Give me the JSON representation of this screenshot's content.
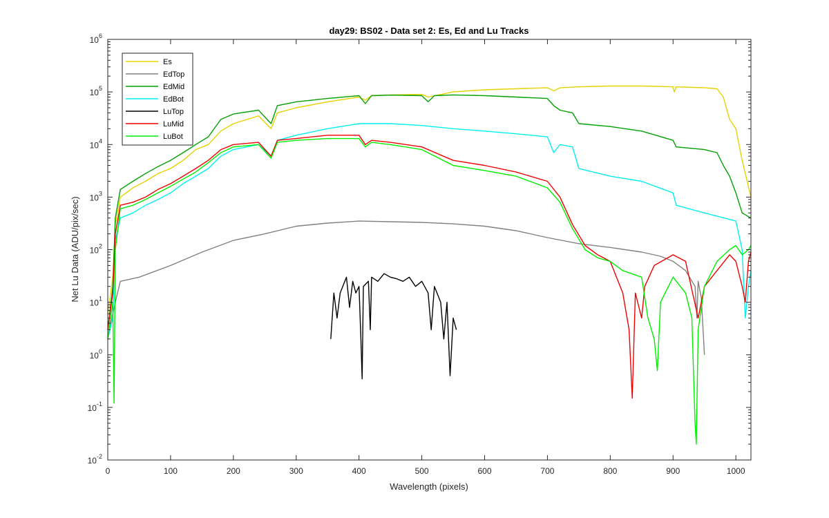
{
  "chart_data": {
    "type": "line",
    "title": "day29: BS02 - Data set 2: Es, Ed and Lu Tracks",
    "xlabel": "Wavelength (pixels)",
    "ylabel": "Net Lu Data (ADU/pix/sec)",
    "xlim": [
      0,
      1024
    ],
    "ylim": [
      0.01,
      1000000
    ],
    "yscale": "log",
    "x_ticks": [
      0,
      100,
      200,
      300,
      400,
      500,
      600,
      700,
      800,
      900,
      1000
    ],
    "y_ticks": [
      {
        "base": "10",
        "exp": "-2",
        "value": 0.01
      },
      {
        "base": "10",
        "exp": "-1",
        "value": 0.1
      },
      {
        "base": "10",
        "exp": "0",
        "value": 1
      },
      {
        "base": "10",
        "exp": "1",
        "value": 10
      },
      {
        "base": "10",
        "exp": "2",
        "value": 100
      },
      {
        "base": "10",
        "exp": "3",
        "value": 1000
      },
      {
        "base": "10",
        "exp": "4",
        "value": 10000
      },
      {
        "base": "10",
        "exp": "5",
        "value": 100000
      },
      {
        "base": "10",
        "exp": "6",
        "value": 1000000
      }
    ],
    "grid": false,
    "legend_position": "top-left",
    "series": [
      {
        "name": "Es",
        "color": "#e6d200",
        "points": [
          [
            0,
            6
          ],
          [
            8,
            30
          ],
          [
            12,
            300
          ],
          [
            20,
            1000
          ],
          [
            40,
            1500
          ],
          [
            60,
            2000
          ],
          [
            80,
            2800
          ],
          [
            100,
            3500
          ],
          [
            120,
            5000
          ],
          [
            140,
            8000
          ],
          [
            160,
            10000
          ],
          [
            180,
            18000
          ],
          [
            200,
            25000
          ],
          [
            240,
            35000
          ],
          [
            260,
            20000
          ],
          [
            270,
            40000
          ],
          [
            300,
            50000
          ],
          [
            350,
            65000
          ],
          [
            400,
            80000
          ],
          [
            410,
            70000
          ],
          [
            420,
            85000
          ],
          [
            450,
            88000
          ],
          [
            500,
            90000
          ],
          [
            510,
            80000
          ],
          [
            550,
            100000
          ],
          [
            600,
            110000
          ],
          [
            650,
            115000
          ],
          [
            700,
            120000
          ],
          [
            710,
            105000
          ],
          [
            720,
            120000
          ],
          [
            750,
            125000
          ],
          [
            800,
            130000
          ],
          [
            850,
            130000
          ],
          [
            900,
            125000
          ],
          [
            902,
            100000
          ],
          [
            905,
            125000
          ],
          [
            950,
            120000
          ],
          [
            970,
            115000
          ],
          [
            980,
            80000
          ],
          [
            990,
            30000
          ],
          [
            1000,
            20000
          ],
          [
            1010,
            5000
          ],
          [
            1024,
            1000
          ]
        ]
      },
      {
        "name": "EdTop",
        "color": "#808080",
        "points": [
          [
            0,
            2
          ],
          [
            8,
            6
          ],
          [
            12,
            10
          ],
          [
            20,
            25
          ],
          [
            50,
            30
          ],
          [
            100,
            50
          ],
          [
            150,
            90
          ],
          [
            200,
            150
          ],
          [
            250,
            200
          ],
          [
            300,
            280
          ],
          [
            350,
            320
          ],
          [
            400,
            350
          ],
          [
            450,
            340
          ],
          [
            500,
            330
          ],
          [
            550,
            310
          ],
          [
            600,
            280
          ],
          [
            650,
            230
          ],
          [
            700,
            170
          ],
          [
            750,
            130
          ],
          [
            800,
            110
          ],
          [
            850,
            90
          ],
          [
            880,
            75
          ],
          [
            900,
            60
          ],
          [
            920,
            40
          ],
          [
            935,
            20
          ],
          [
            938,
            5
          ],
          [
            940,
            25
          ],
          [
            945,
            12
          ],
          [
            950,
            1
          ]
        ]
      },
      {
        "name": "EdMid",
        "color": "#00a000",
        "points": [
          [
            0,
            3
          ],
          [
            8,
            20
          ],
          [
            12,
            400
          ],
          [
            20,
            1400
          ],
          [
            40,
            2000
          ],
          [
            60,
            2800
          ],
          [
            80,
            3800
          ],
          [
            100,
            5000
          ],
          [
            120,
            7000
          ],
          [
            140,
            10000
          ],
          [
            160,
            14000
          ],
          [
            180,
            30000
          ],
          [
            200,
            38000
          ],
          [
            240,
            45000
          ],
          [
            260,
            25000
          ],
          [
            270,
            55000
          ],
          [
            300,
            65000
          ],
          [
            350,
            75000
          ],
          [
            400,
            85000
          ],
          [
            410,
            60000
          ],
          [
            420,
            85000
          ],
          [
            450,
            87000
          ],
          [
            500,
            85000
          ],
          [
            510,
            65000
          ],
          [
            520,
            85000
          ],
          [
            550,
            88000
          ],
          [
            600,
            85000
          ],
          [
            650,
            80000
          ],
          [
            700,
            75000
          ],
          [
            710,
            55000
          ],
          [
            720,
            45000
          ],
          [
            740,
            40000
          ],
          [
            750,
            25000
          ],
          [
            800,
            22000
          ],
          [
            850,
            18000
          ],
          [
            900,
            12000
          ],
          [
            905,
            9000
          ],
          [
            950,
            8000
          ],
          [
            970,
            7000
          ],
          [
            980,
            4000
          ],
          [
            990,
            2500
          ],
          [
            1000,
            1200
          ],
          [
            1010,
            500
          ],
          [
            1024,
            400
          ]
        ]
      },
      {
        "name": "EdBot",
        "color": "#00f0f0",
        "points": [
          [
            0,
            2
          ],
          [
            8,
            5
          ],
          [
            12,
            150
          ],
          [
            20,
            400
          ],
          [
            40,
            500
          ],
          [
            60,
            700
          ],
          [
            80,
            900
          ],
          [
            100,
            1200
          ],
          [
            120,
            1800
          ],
          [
            140,
            2500
          ],
          [
            160,
            3500
          ],
          [
            180,
            6000
          ],
          [
            200,
            8000
          ],
          [
            240,
            10000
          ],
          [
            260,
            6000
          ],
          [
            270,
            12000
          ],
          [
            300,
            15000
          ],
          [
            350,
            20000
          ],
          [
            400,
            25000
          ],
          [
            450,
            25000
          ],
          [
            500,
            23000
          ],
          [
            550,
            20000
          ],
          [
            600,
            18000
          ],
          [
            650,
            16000
          ],
          [
            700,
            14000
          ],
          [
            710,
            7000
          ],
          [
            720,
            10000
          ],
          [
            740,
            9000
          ],
          [
            750,
            3500
          ],
          [
            800,
            2500
          ],
          [
            850,
            2000
          ],
          [
            900,
            1200
          ],
          [
            905,
            700
          ],
          [
            950,
            500
          ],
          [
            1000,
            350
          ],
          [
            1010,
            100
          ],
          [
            1015,
            5
          ],
          [
            1020,
            20
          ],
          [
            1024,
            40
          ]
        ]
      },
      {
        "name": "LuTop",
        "color": "#000000",
        "points": [
          [
            355,
            2
          ],
          [
            360,
            15
          ],
          [
            365,
            5
          ],
          [
            370,
            15
          ],
          [
            380,
            30
          ],
          [
            385,
            8
          ],
          [
            390,
            25
          ],
          [
            395,
            15
          ],
          [
            400,
            20
          ],
          [
            403,
            2
          ],
          [
            405,
            0.35
          ],
          [
            407,
            20
          ],
          [
            415,
            25
          ],
          [
            418,
            3
          ],
          [
            420,
            30
          ],
          [
            430,
            25
          ],
          [
            440,
            35
          ],
          [
            450,
            30
          ],
          [
            460,
            28
          ],
          [
            470,
            25
          ],
          [
            480,
            30
          ],
          [
            490,
            20
          ],
          [
            500,
            25
          ],
          [
            510,
            15
          ],
          [
            515,
            3
          ],
          [
            520,
            20
          ],
          [
            530,
            10
          ],
          [
            535,
            2
          ],
          [
            540,
            10
          ],
          [
            545,
            0.4
          ],
          [
            550,
            5
          ],
          [
            555,
            3
          ]
        ]
      },
      {
        "name": "LuMid",
        "color": "#ee0000",
        "points": [
          [
            0,
            3
          ],
          [
            8,
            15
          ],
          [
            12,
            200
          ],
          [
            20,
            700
          ],
          [
            40,
            800
          ],
          [
            60,
            1000
          ],
          [
            80,
            1400
          ],
          [
            100,
            1800
          ],
          [
            120,
            2500
          ],
          [
            140,
            3500
          ],
          [
            160,
            5000
          ],
          [
            180,
            8000
          ],
          [
            200,
            10000
          ],
          [
            240,
            11000
          ],
          [
            260,
            6000
          ],
          [
            270,
            12000
          ],
          [
            300,
            13000
          ],
          [
            350,
            15000
          ],
          [
            400,
            15000
          ],
          [
            410,
            10000
          ],
          [
            420,
            12000
          ],
          [
            450,
            11000
          ],
          [
            500,
            9000
          ],
          [
            550,
            5000
          ],
          [
            600,
            4000
          ],
          [
            650,
            3000
          ],
          [
            700,
            2000
          ],
          [
            720,
            1000
          ],
          [
            740,
            300
          ],
          [
            760,
            120
          ],
          [
            780,
            80
          ],
          [
            800,
            60
          ],
          [
            820,
            15
          ],
          [
            830,
            3
          ],
          [
            835,
            0.15
          ],
          [
            840,
            15
          ],
          [
            850,
            5
          ],
          [
            855,
            20
          ],
          [
            870,
            50
          ],
          [
            900,
            80
          ],
          [
            920,
            60
          ],
          [
            940,
            5
          ],
          [
            950,
            20
          ],
          [
            970,
            40
          ],
          [
            990,
            80
          ],
          [
            1000,
            60
          ],
          [
            1010,
            20
          ],
          [
            1015,
            10
          ],
          [
            1020,
            60
          ],
          [
            1024,
            90
          ]
        ]
      },
      {
        "name": "LuBot",
        "color": "#00ee00",
        "points": [
          [
            0,
            2
          ],
          [
            8,
            10
          ],
          [
            10,
            0.12
          ],
          [
            12,
            100
          ],
          [
            20,
            600
          ],
          [
            40,
            700
          ],
          [
            60,
            900
          ],
          [
            80,
            1200
          ],
          [
            100,
            1600
          ],
          [
            120,
            2200
          ],
          [
            140,
            3000
          ],
          [
            160,
            4500
          ],
          [
            180,
            7000
          ],
          [
            200,
            9000
          ],
          [
            240,
            10000
          ],
          [
            260,
            5500
          ],
          [
            270,
            11000
          ],
          [
            300,
            12000
          ],
          [
            350,
            13000
          ],
          [
            400,
            13000
          ],
          [
            410,
            9000
          ],
          [
            420,
            11000
          ],
          [
            450,
            10000
          ],
          [
            500,
            8000
          ],
          [
            550,
            4000
          ],
          [
            600,
            3200
          ],
          [
            650,
            2500
          ],
          [
            700,
            1500
          ],
          [
            720,
            800
          ],
          [
            740,
            250
          ],
          [
            760,
            100
          ],
          [
            780,
            70
          ],
          [
            800,
            60
          ],
          [
            820,
            40
          ],
          [
            850,
            30
          ],
          [
            860,
            5
          ],
          [
            870,
            2
          ],
          [
            875,
            0.5
          ],
          [
            880,
            10
          ],
          [
            900,
            30
          ],
          [
            920,
            15
          ],
          [
            930,
            5
          ],
          [
            935,
            0.05
          ],
          [
            937,
            0.02
          ],
          [
            940,
            3
          ],
          [
            950,
            20
          ],
          [
            970,
            60
          ],
          [
            990,
            100
          ],
          [
            1000,
            120
          ],
          [
            1010,
            80
          ],
          [
            1020,
            100
          ],
          [
            1024,
            120
          ]
        ]
      }
    ]
  }
}
